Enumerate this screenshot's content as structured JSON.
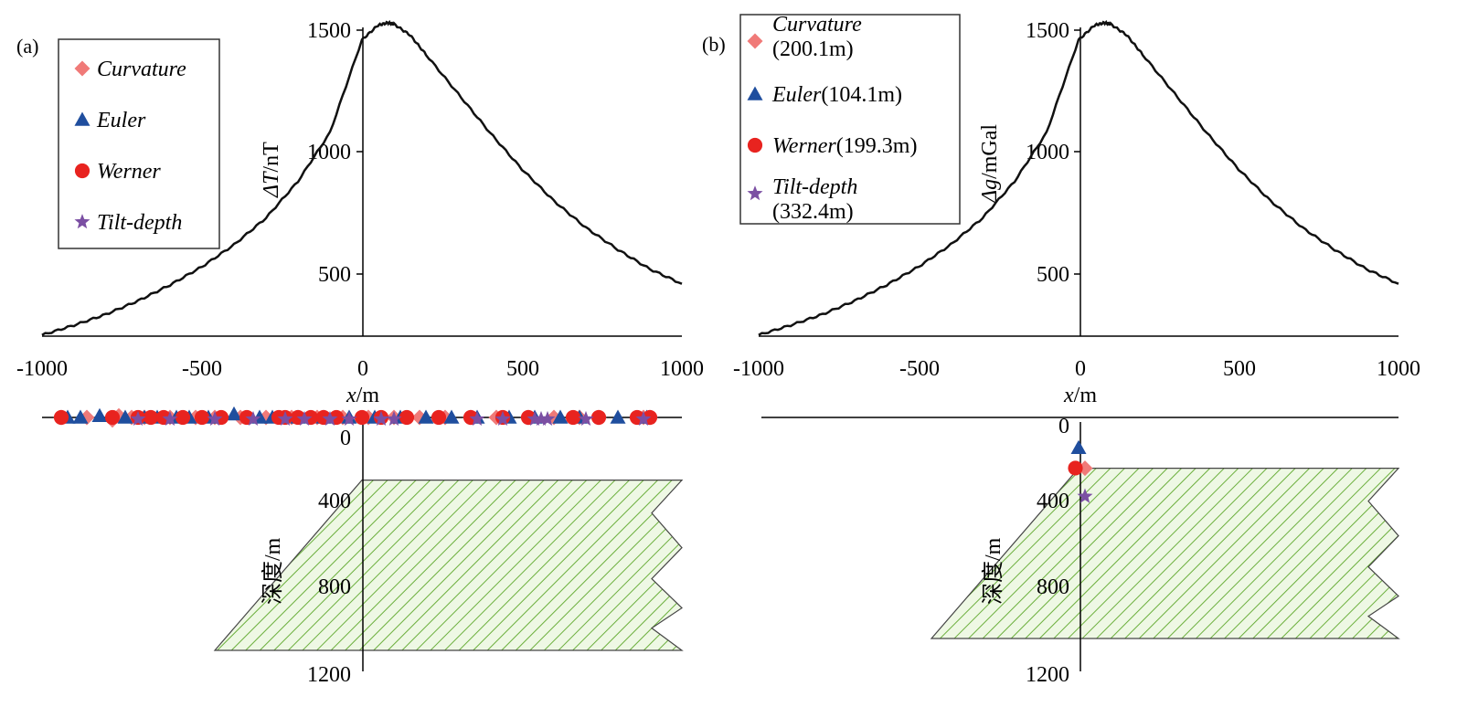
{
  "colors": {
    "curve": "#111111",
    "curvature": "#F07A78",
    "euler": "#1F4E9E",
    "werner": "#E8231F",
    "tilt_depth": "#7B4FA3",
    "body_hatch": "#6BAF3C",
    "body_fill": "#EEF8E4"
  },
  "chart_data": [
    {
      "type": "line",
      "panel_label": "(a)",
      "ylabel": {
        "symbol": "ΔT",
        "unit": "/nT"
      },
      "xlabel": {
        "symbol": "x",
        "unit": "/m"
      },
      "depth_label": "深度/m",
      "xlim": [
        -1000,
        1000
      ],
      "ylim": [
        300,
        1500
      ],
      "xticks": [
        "-1000",
        "-500",
        "0",
        "500",
        "1000"
      ],
      "yticks": [
        "500",
        "1000",
        "1500"
      ],
      "depth_ticks": [
        "0",
        "400",
        "800",
        "1200"
      ],
      "depth_lim": [
        -90,
        1200
      ],
      "profile": {
        "x": [
          -1000,
          -900,
          -800,
          -700,
          -600,
          -500,
          -400,
          -300,
          -200,
          -100,
          0,
          50,
          80,
          100,
          150,
          200,
          300,
          400,
          500,
          600,
          700,
          800,
          900,
          1000
        ],
        "y": [
          250,
          290,
          335,
          390,
          455,
          530,
          620,
          730,
          880,
          1080,
          1460,
          1520,
          1530,
          1525,
          1480,
          1400,
          1240,
          1080,
          930,
          800,
          690,
          600,
          520,
          460
        ]
      },
      "body": {
        "top_depth": 200,
        "bottom_depth": 1000,
        "top_x": [
          0,
          1000
        ],
        "bottom_x": [
          -460,
          1000
        ]
      },
      "legend": [
        {
          "name": "Curvature",
          "depth": "",
          "marker": "diamond"
        },
        {
          "name": "Euler",
          "depth": "",
          "marker": "triangle"
        },
        {
          "name": "Werner",
          "depth": "",
          "marker": "circle"
        },
        {
          "name": "Tilt-depth",
          "depth": "",
          "marker": "star"
        }
      ],
      "series": [
        {
          "name": "Curvature",
          "x": [
            -940,
            -860,
            -780,
            -760,
            -720,
            -680,
            -600,
            -520,
            -460,
            -380,
            -300,
            -220,
            -140,
            -60,
            20,
            100,
            180,
            260,
            340,
            420,
            520,
            600,
            680,
            740,
            880,
            900
          ],
          "y": [
            -8,
            -8,
            -5,
            -10,
            -8,
            -8,
            -8,
            -8,
            -8,
            -8,
            -8,
            -8,
            -8,
            -8,
            -8,
            -8,
            -8,
            -8,
            -8,
            -8,
            -8,
            -8,
            -8,
            -8,
            -8,
            -8
          ]
        },
        {
          "name": "Euler",
          "x": [
            -920,
            -880,
            -820,
            -740,
            -680,
            -640,
            -580,
            -540,
            -480,
            -400,
            -320,
            -280,
            -200,
            -120,
            -40,
            40,
            120,
            200,
            280,
            360,
            460,
            540,
            620,
            680,
            800,
            890
          ],
          "y": [
            -8,
            -8,
            -10,
            -8,
            -8,
            -8,
            -8,
            -8,
            -8,
            -12,
            -8,
            -8,
            -8,
            -8,
            -8,
            -8,
            -8,
            -8,
            -8,
            -8,
            -8,
            -8,
            -8,
            -8,
            -8,
            -8
          ]
        },
        {
          "name": "Werner",
          "x": [
            -940,
            -780,
            -700,
            -660,
            -620,
            -560,
            -500,
            -440,
            -360,
            -260,
            -240,
            -200,
            -160,
            -120,
            -80,
            0,
            60,
            140,
            240,
            340,
            440,
            520,
            660,
            740,
            860,
            900
          ],
          "y": [
            -8,
            -8,
            -8,
            -8,
            -8,
            -8,
            -8,
            -8,
            -8,
            -8,
            -8,
            -8,
            -8,
            -8,
            -8,
            -8,
            -8,
            -8,
            -8,
            -8,
            -8,
            -8,
            -8,
            -8,
            -8,
            -8
          ]
        },
        {
          "name": "Tilt-depth",
          "x": [
            -700,
            -600,
            -460,
            -340,
            -240,
            -180,
            -100,
            -40,
            60,
            100,
            360,
            440,
            540,
            560,
            580,
            700,
            880
          ],
          "y": [
            -6,
            -6,
            -6,
            -6,
            -6,
            -6,
            -6,
            -6,
            -6,
            -6,
            -6,
            -6,
            -6,
            -6,
            -6,
            -6,
            -6
          ]
        }
      ]
    },
    {
      "type": "line",
      "panel_label": "(b)",
      "ylabel": {
        "symbol": "Δg",
        "unit": "/mGal"
      },
      "xlabel": {
        "symbol": "x",
        "unit": "/m"
      },
      "depth_label": "深度/m",
      "xlim": [
        -1000,
        1000
      ],
      "ylim": [
        300,
        1500
      ],
      "xticks": [
        "-1000",
        "-500",
        "0",
        "500",
        "1000"
      ],
      "yticks": [
        "500",
        "1000",
        "1500"
      ],
      "depth_ticks": [
        "0",
        "400",
        "800",
        "1200"
      ],
      "depth_lim": [
        -90,
        1200
      ],
      "profile": {
        "x": [
          -1000,
          -900,
          -800,
          -700,
          -600,
          -500,
          -400,
          -300,
          -200,
          -100,
          0,
          50,
          80,
          100,
          150,
          200,
          300,
          400,
          500,
          600,
          700,
          800,
          900,
          1000
        ],
        "y": [
          250,
          290,
          335,
          390,
          455,
          530,
          620,
          730,
          880,
          1080,
          1460,
          1520,
          1530,
          1525,
          1480,
          1400,
          1240,
          1080,
          930,
          800,
          690,
          600,
          520,
          460
        ]
      },
      "body": {
        "top_depth": 200,
        "bottom_depth": 1000,
        "top_x": [
          0,
          1000
        ],
        "bottom_x": [
          -460,
          1000
        ]
      },
      "legend": [
        {
          "name": "Curvature",
          "depth": "(200.1m)",
          "marker": "diamond"
        },
        {
          "name": "Euler",
          "depth": "(104.1m)",
          "marker": "triangle"
        },
        {
          "name": "Werner",
          "depth": "(199.3m)",
          "marker": "circle"
        },
        {
          "name": "Tilt-depth",
          "depth": "(332.4m)",
          "marker": "star"
        }
      ],
      "series": [
        {
          "name": "Curvature",
          "x": [
            20
          ],
          "y": [
            200.1
          ]
        },
        {
          "name": "Euler",
          "x": [
            0
          ],
          "y": [
            104.1
          ]
        },
        {
          "name": "Werner",
          "x": [
            -10
          ],
          "y": [
            199.3
          ]
        },
        {
          "name": "Tilt-depth",
          "x": [
            20
          ],
          "y": [
            332.4
          ]
        }
      ]
    }
  ]
}
